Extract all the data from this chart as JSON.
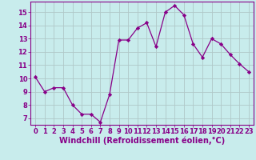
{
  "x": [
    0,
    1,
    2,
    3,
    4,
    5,
    6,
    7,
    8,
    9,
    10,
    11,
    12,
    13,
    14,
    15,
    16,
    17,
    18,
    19,
    20,
    21,
    22,
    23
  ],
  "y": [
    10.1,
    9.0,
    9.3,
    9.3,
    8.0,
    7.3,
    7.3,
    6.7,
    8.8,
    12.9,
    12.9,
    13.8,
    14.2,
    12.4,
    15.0,
    15.5,
    14.8,
    12.6,
    11.6,
    13.0,
    12.6,
    11.8,
    11.1,
    10.5
  ],
  "line_color": "#880088",
  "marker": "D",
  "marker_size": 2.2,
  "bg_color": "#c8ecec",
  "grid_color": "#b0c8c8",
  "xlabel": "Windchill (Refroidissement éolien,°C)",
  "ylim": [
    6.5,
    15.8
  ],
  "xlim": [
    -0.5,
    23.5
  ],
  "yticks": [
    7,
    8,
    9,
    10,
    11,
    12,
    13,
    14,
    15
  ],
  "xticks": [
    0,
    1,
    2,
    3,
    4,
    5,
    6,
    7,
    8,
    9,
    10,
    11,
    12,
    13,
    14,
    15,
    16,
    17,
    18,
    19,
    20,
    21,
    22,
    23
  ],
  "tick_fontsize": 6,
  "xlabel_fontsize": 7,
  "tick_color": "#880088",
  "label_color": "#880088",
  "spine_color": "#880088"
}
